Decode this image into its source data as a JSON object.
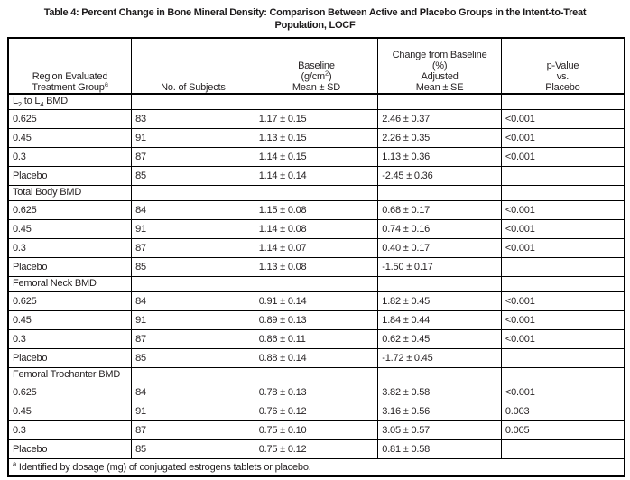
{
  "title": {
    "line1": "Table 4: Percent Change in Bone Mineral Density: Comparison Between Active and Placebo Groups in the Intent-to-Treat",
    "line2": "Population, LOCF"
  },
  "table": {
    "headers": [
      "Region Evaluated\nTreatment Group^a^",
      "No. of Subjects",
      "Baseline\n(g/cm^2^)\nMean ± SD",
      "Change from Baseline\n(%)\nAdjusted\nMean ± SE",
      "p-Value\nvs.\nPlacebo"
    ],
    "sections": [
      {
        "label": "L~2~ to L~4~ BMD",
        "rows": [
          [
            "0.625",
            "83",
            "1.17 ± 0.15",
            "2.46 ± 0.37",
            "<0.001"
          ],
          [
            "0.45",
            "91",
            "1.13 ± 0.15",
            "2.26 ± 0.35",
            "<0.001"
          ],
          [
            "0.3",
            "87",
            "1.14 ± 0.15",
            "1.13 ± 0.36",
            "<0.001"
          ],
          [
            "Placebo",
            "85",
            "1.14 ± 0.14",
            "-2.45 ± 0.36",
            ""
          ]
        ]
      },
      {
        "label": "Total Body BMD",
        "rows": [
          [
            "0.625",
            "84",
            "1.15 ± 0.08",
            "0.68 ± 0.17",
            "<0.001"
          ],
          [
            "0.45",
            "91",
            "1.14 ± 0.08",
            "0.74 ± 0.16",
            "<0.001"
          ],
          [
            "0.3",
            "87",
            "1.14 ± 0.07",
            "0.40 ± 0.17",
            "<0.001"
          ],
          [
            "Placebo",
            "85",
            "1.13 ± 0.08",
            "-1.50 ± 0.17",
            ""
          ]
        ]
      },
      {
        "label": "Femoral Neck BMD",
        "rows": [
          [
            "0.625",
            "84",
            "0.91 ± 0.14",
            "1.82 ± 0.45",
            "<0.001"
          ],
          [
            "0.45",
            "91",
            "0.89 ± 0.13",
            "1.84 ± 0.44",
            "<0.001"
          ],
          [
            "0.3",
            "87",
            "0.86 ± 0.11",
            "0.62 ± 0.45",
            "<0.001"
          ],
          [
            "Placebo",
            "85",
            "0.88 ± 0.14",
            "-1.72 ± 0.45",
            ""
          ]
        ]
      },
      {
        "label": "Femoral Trochanter BMD",
        "rows": [
          [
            "0.625",
            "84",
            "0.78 ± 0.13",
            "3.82 ± 0.58",
            "<0.001"
          ],
          [
            "0.45",
            "91",
            "0.76 ± 0.12",
            "3.16 ± 0.56",
            "0.003"
          ],
          [
            "0.3",
            "87",
            "0.75 ± 0.10",
            "3.05 ± 0.57",
            "0.005"
          ],
          [
            "Placebo",
            "85",
            "0.75 ± 0.12",
            "0.81 ± 0.58",
            ""
          ]
        ]
      }
    ],
    "footnote": "^a^ Identified by dosage (mg) of conjugated estrogens tablets or placebo.",
    "column_cell_names": [
      "cell-treatment-group",
      "cell-no-of-subjects",
      "cell-baseline",
      "cell-change-from-baseline",
      "cell-p-value"
    ],
    "text_color": "#231f20",
    "border_color": "#000000"
  }
}
